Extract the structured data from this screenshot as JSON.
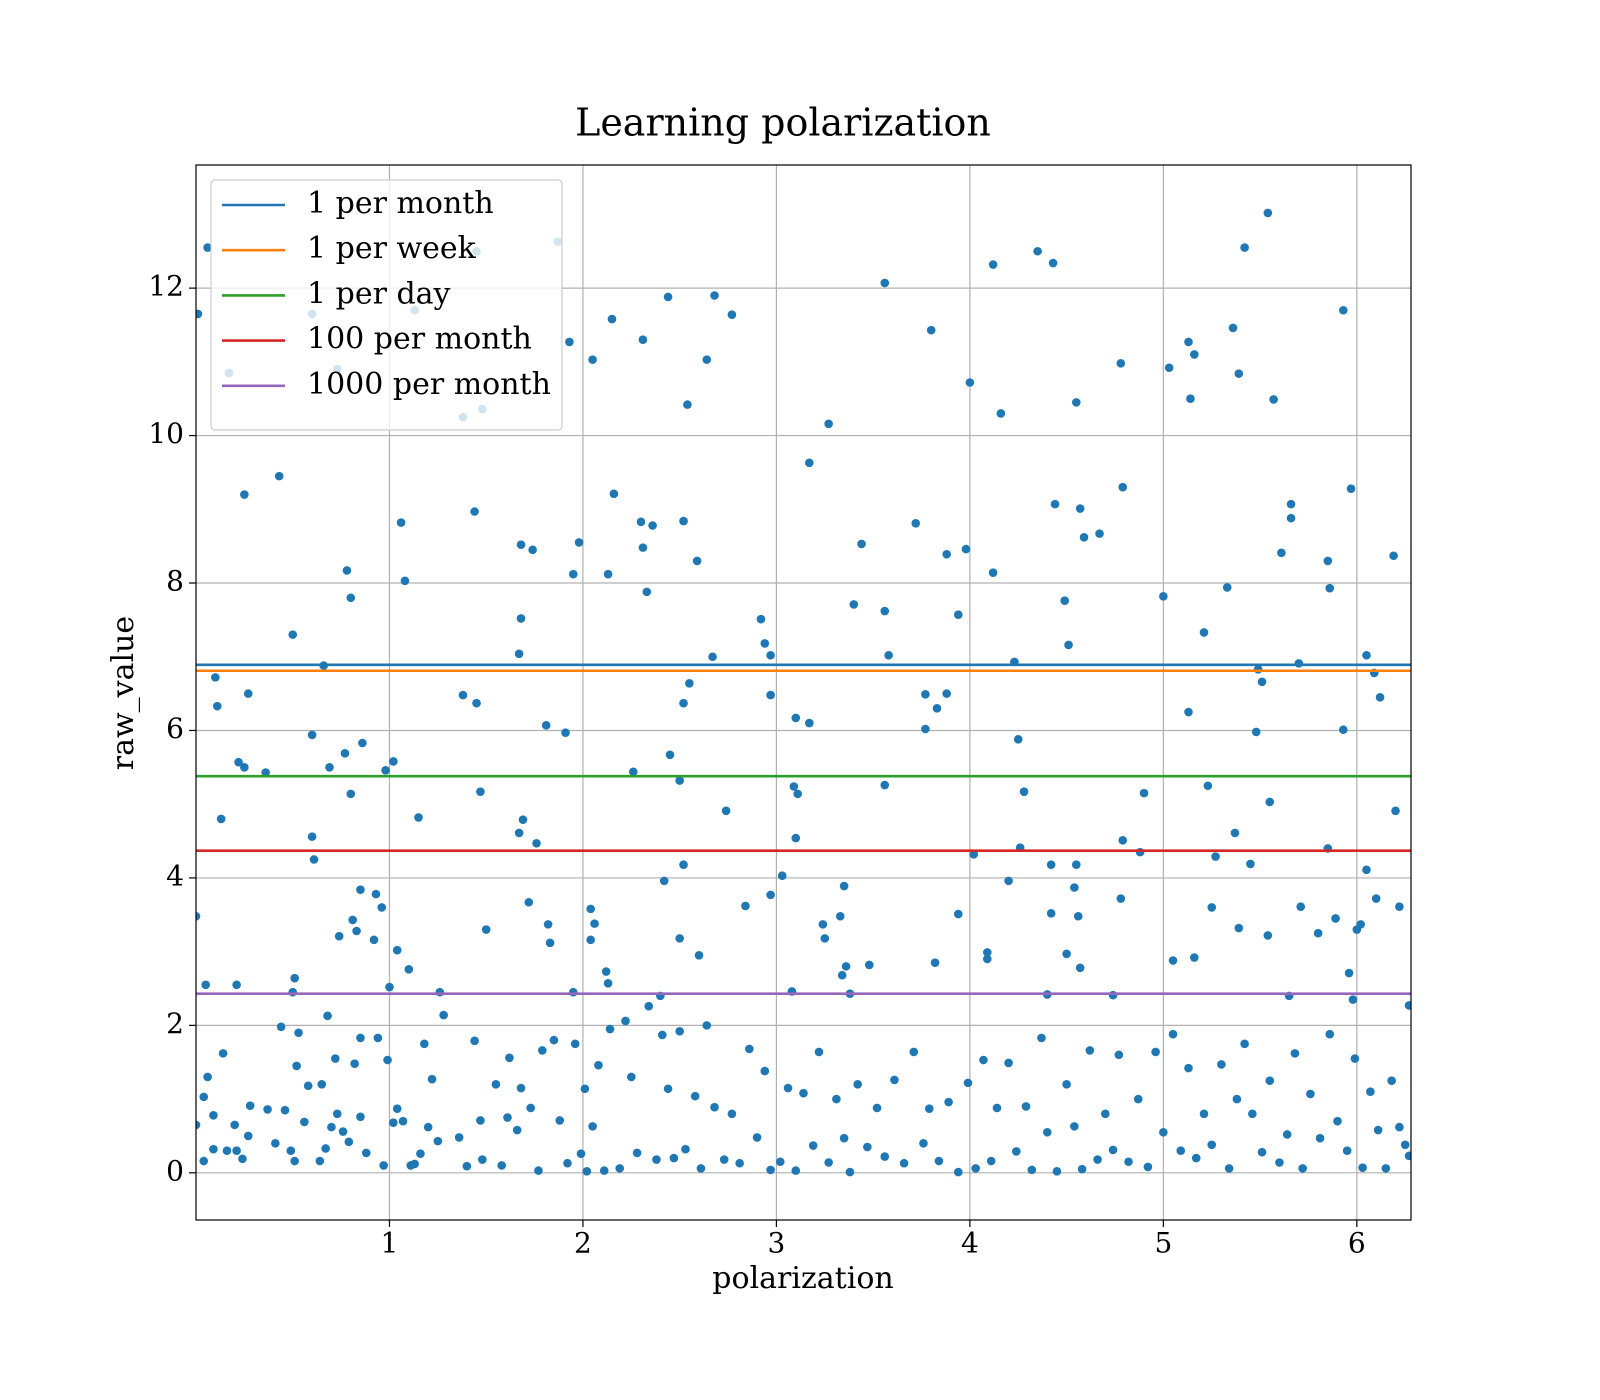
{
  "chart_data": {
    "type": "scatter",
    "title": "Learning polarization",
    "xlabel": "polarization",
    "ylabel": "raw_value",
    "color": "#1f77b4",
    "x": [
      0.01,
      0.06,
      0.17,
      0.25,
      0.43,
      0.6,
      0.73,
      0.5,
      0.78,
      0.8,
      0.66,
      0.1,
      0.11,
      0.27,
      0.13,
      0.22,
      0.25,
      0.36,
      0.6,
      0.6,
      0.61,
      0.69,
      0.77,
      0.8,
      0.86,
      0.98,
      1.06,
      1.08,
      1.13,
      1.02,
      1.15,
      1.38,
      1.44,
      1.45,
      1.38,
      1.47,
      1.48,
      1.45,
      1.68,
      1.74,
      1.68,
      1.67,
      1.69,
      1.67,
      1.76,
      1.81,
      1.87,
      1.91,
      1.93,
      1.95,
      1.98,
      2.05,
      2.15,
      2.16,
      2.13,
      2.26,
      2.31,
      2.3,
      2.31,
      2.36,
      2.33,
      2.44,
      2.52,
      2.59,
      2.54,
      2.64,
      2.68,
      2.77,
      2.67,
      2.55,
      2.52,
      2.45,
      2.5,
      2.52,
      2.42,
      2.74,
      2.92,
      2.94,
      2.97,
      2.97,
      3.1,
      3.17,
      3.09,
      3.11,
      3.1,
      3.17,
      3.27,
      3.44,
      3.4,
      3.56,
      3.56,
      3.58,
      3.56,
      3.72,
      3.8,
      3.77,
      3.77,
      3.83,
      3.88,
      3.88,
      3.94,
      3.98,
      4.0,
      4.12,
      4.12,
      4.16,
      4.23,
      4.25,
      4.28,
      4.26,
      4.02,
      4.35,
      4.43,
      4.44,
      4.49,
      4.51,
      4.55,
      4.57,
      4.59,
      4.67,
      4.78,
      4.79,
      4.79,
      4.88,
      4.9,
      5.0,
      5.03,
      5.13,
      5.14,
      5.16,
      5.21,
      5.13,
      5.23,
      5.27,
      5.33,
      5.36,
      5.39,
      5.42,
      5.37,
      5.45,
      5.48,
      5.49,
      5.51,
      5.54,
      5.57,
      5.55,
      5.61,
      5.66,
      5.66,
      5.7,
      5.85,
      5.86,
      5.93,
      5.93,
      5.97,
      6.05,
      6.09,
      6.12,
      6.19,
      6.2,
      6.05,
      5.85,
      0.0,
      0.85,
      0.83,
      0.81,
      0.74,
      0.92,
      0.93,
      0.96,
      1.04,
      1.1,
      0.51,
      1.5,
      1.72,
      1.82,
      1.83,
      2.04,
      2.06,
      2.04,
      2.12,
      2.13,
      2.5,
      2.6,
      2.84,
      2.97,
      3.03,
      3.24,
      3.25,
      3.33,
      3.35,
      3.34,
      3.36,
      3.48,
      3.82,
      3.94,
      4.09,
      4.09,
      4.2,
      4.42,
      4.42,
      4.54,
      4.56,
      4.57,
      4.5,
      4.55,
      4.78,
      5.05,
      5.16,
      5.25,
      5.39,
      5.54,
      5.71,
      5.8,
      5.89,
      5.96,
      6.0,
      6.02,
      6.1,
      6.22,
      0.05,
      0.21,
      0.5,
      1.0,
      1.26,
      1.95,
      2.4,
      3.08,
      3.38,
      4.4,
      4.74,
      5.65,
      5.98,
      6.27,
      0.0,
      0.04,
      0.06,
      0.04,
      0.09,
      0.09,
      0.14,
      0.16,
      0.2,
      0.21,
      0.24,
      0.27,
      0.28,
      0.37,
      0.41,
      0.44,
      0.46,
      0.49,
      0.51,
      0.52,
      0.53,
      0.56,
      0.58,
      0.64,
      0.65,
      0.67,
      0.68,
      0.7,
      0.72,
      0.73,
      0.76,
      0.79,
      0.82,
      0.85,
      0.85,
      0.88,
      0.94,
      0.97,
      0.99,
      1.02,
      1.04,
      1.07,
      1.11,
      1.13,
      1.16,
      1.18,
      1.2,
      1.22,
      1.25,
      1.28,
      1.36,
      1.4,
      1.44,
      1.47,
      1.48,
      1.55,
      1.58,
      1.61,
      1.62,
      1.66,
      1.68,
      1.73,
      1.77,
      1.79,
      1.85,
      1.88,
      1.92,
      1.96,
      1.99,
      2.01,
      2.02,
      2.05,
      2.08,
      2.11,
      2.14,
      2.19,
      2.22,
      2.25,
      2.28,
      2.34,
      2.38,
      2.41,
      2.44,
      2.47,
      2.5,
      2.53,
      2.58,
      2.61,
      2.64,
      2.68,
      2.73,
      2.77,
      2.81,
      2.86,
      2.9,
      2.94,
      2.97,
      3.02,
      3.06,
      3.1,
      3.14,
      3.19,
      3.22,
      3.27,
      3.31,
      3.35,
      3.38,
      3.42,
      3.47,
      3.52,
      3.56,
      3.61,
      3.66,
      3.71,
      3.76,
      3.79,
      3.84,
      3.89,
      3.94,
      3.99,
      4.03,
      4.07,
      4.11,
      4.14,
      4.2,
      4.24,
      4.29,
      4.32,
      4.37,
      4.4,
      4.45,
      4.5,
      4.54,
      4.58,
      4.62,
      4.66,
      4.7,
      4.74,
      4.77,
      4.82,
      4.87,
      4.92,
      4.96,
      5.0,
      5.05,
      5.09,
      5.13,
      5.17,
      5.21,
      5.25,
      5.3,
      5.34,
      5.38,
      5.42,
      5.46,
      5.51,
      5.55,
      5.6,
      5.64,
      5.68,
      5.72,
      5.76,
      5.81,
      5.86,
      5.9,
      5.95,
      5.99,
      6.03,
      6.07,
      6.11,
      6.15,
      6.18,
      6.22,
      6.25,
      6.27
    ],
    "values": [
      11.65,
      12.55,
      10.85,
      9.2,
      9.45,
      11.65,
      10.9,
      7.3,
      8.17,
      7.8,
      6.88,
      6.72,
      6.33,
      6.5,
      4.8,
      5.57,
      5.5,
      5.43,
      5.94,
      4.56,
      4.25,
      5.5,
      5.69,
      5.14,
      5.83,
      5.46,
      8.82,
      8.03,
      11.7,
      5.58,
      4.82,
      10.25,
      8.97,
      6.37,
      6.48,
      5.17,
      10.36,
      12.5,
      8.52,
      8.45,
      7.52,
      7.04,
      4.79,
      4.61,
      4.47,
      6.07,
      12.63,
      5.97,
      11.27,
      8.12,
      8.55,
      11.03,
      11.58,
      9.21,
      8.12,
      5.44,
      11.3,
      8.83,
      8.48,
      8.78,
      7.88,
      11.88,
      8.84,
      8.3,
      10.42,
      11.03,
      11.9,
      11.64,
      7.0,
      6.64,
      6.37,
      5.67,
      5.32,
      4.18,
      3.96,
      4.91,
      7.51,
      7.18,
      7.02,
      6.48,
      6.17,
      6.1,
      5.24,
      5.14,
      4.54,
      9.63,
      10.16,
      8.53,
      7.71,
      12.07,
      7.62,
      7.02,
      5.26,
      8.81,
      11.43,
      6.49,
      6.02,
      6.3,
      6.5,
      8.39,
      7.57,
      8.46,
      10.72,
      12.32,
      8.14,
      10.3,
      6.93,
      5.88,
      5.17,
      4.41,
      4.32,
      12.5,
      12.34,
      9.07,
      7.76,
      7.16,
      10.45,
      9.01,
      8.62,
      8.67,
      10.98,
      9.3,
      4.51,
      4.35,
      5.15,
      7.82,
      10.92,
      11.27,
      10.5,
      11.1,
      7.33,
      6.25,
      5.25,
      4.29,
      7.94,
      11.46,
      10.84,
      12.55,
      4.61,
      4.19,
      5.98,
      6.83,
      6.66,
      13.02,
      10.49,
      5.03,
      8.41,
      9.07,
      8.88,
      6.91,
      8.3,
      7.93,
      11.7,
      6.01,
      9.28,
      7.02,
      6.78,
      6.45,
      8.37,
      4.91,
      4.11,
      4.4,
      3.48,
      3.84,
      3.28,
      3.43,
      3.21,
      3.16,
      3.78,
      3.6,
      3.02,
      2.76,
      2.64,
      3.3,
      3.67,
      3.37,
      3.12,
      3.58,
      3.38,
      3.16,
      2.73,
      2.57,
      3.18,
      2.95,
      3.62,
      3.77,
      4.03,
      3.37,
      3.18,
      3.48,
      3.89,
      2.68,
      2.8,
      2.82,
      2.85,
      3.51,
      2.99,
      2.9,
      3.96,
      3.52,
      4.18,
      3.87,
      3.48,
      2.78,
      2.97,
      4.18,
      3.72,
      2.88,
      2.92,
      3.6,
      3.32,
      3.22,
      3.61,
      3.25,
      3.45,
      2.71,
      3.3,
      3.37,
      3.72,
      3.61,
      2.55,
      2.55,
      2.45,
      2.52,
      2.45,
      2.45,
      2.4,
      2.46,
      2.43,
      2.42,
      2.41,
      2.4,
      2.35,
      2.27,
      0.65,
      1.03,
      1.3,
      0.16,
      0.32,
      0.78,
      1.62,
      0.3,
      0.65,
      0.3,
      0.19,
      0.5,
      0.91,
      0.86,
      0.4,
      1.98,
      0.85,
      0.3,
      0.16,
      1.45,
      1.9,
      0.69,
      1.18,
      0.16,
      1.2,
      0.33,
      2.13,
      0.62,
      1.55,
      0.8,
      0.56,
      0.42,
      1.48,
      0.76,
      1.83,
      0.27,
      1.83,
      0.1,
      1.53,
      0.68,
      0.87,
      0.7,
      0.1,
      0.12,
      0.26,
      1.75,
      0.62,
      1.27,
      0.43,
      2.14,
      0.48,
      0.09,
      1.79,
      0.71,
      0.18,
      1.2,
      0.1,
      0.75,
      1.56,
      0.58,
      1.15,
      0.88,
      0.03,
      1.66,
      1.8,
      0.71,
      0.13,
      1.75,
      0.26,
      1.14,
      0.02,
      0.63,
      1.46,
      0.03,
      1.95,
      0.06,
      2.06,
      1.3,
      0.27,
      2.26,
      0.18,
      1.87,
      1.14,
      0.2,
      1.92,
      0.32,
      1.04,
      0.06,
      2.0,
      0.89,
      0.18,
      0.8,
      0.13,
      1.68,
      0.48,
      1.38,
      0.04,
      0.15,
      1.15,
      0.03,
      1.08,
      0.37,
      1.64,
      0.14,
      1.0,
      0.47,
      0.01,
      1.2,
      0.35,
      0.88,
      0.22,
      1.26,
      0.13,
      1.64,
      0.4,
      0.87,
      0.16,
      0.96,
      0.01,
      1.22,
      0.06,
      1.53,
      0.16,
      0.88,
      1.49,
      0.29,
      0.9,
      0.04,
      1.83,
      0.55,
      0.02,
      1.2,
      0.63,
      0.05,
      1.66,
      0.18,
      0.8,
      0.31,
      1.6,
      0.15,
      1.0,
      0.08,
      1.64,
      0.55,
      1.88,
      0.3,
      1.42,
      0.2,
      0.8,
      0.38,
      1.47,
      0.06,
      1.0,
      1.75,
      0.8,
      0.28,
      1.25,
      0.14,
      0.52,
      1.62,
      0.06,
      1.07,
      0.47,
      1.88,
      0.7,
      0.3,
      1.55,
      0.07,
      1.1,
      0.58,
      0.06,
      1.25,
      0.62,
      0.38,
      0.23
    ],
    "lines": [
      {
        "name": "1 per month",
        "color": "#1f77b4",
        "value": 6.89
      },
      {
        "name": "1 per week",
        "color": "#ff7f0e",
        "value": 6.81
      },
      {
        "name": "1 per day",
        "color": "#2ca02c",
        "value": 5.38
      },
      {
        "name": "100 per month",
        "color": "#d62728",
        "value": 4.37
      },
      {
        "name": "1000 per month",
        "color": "#9467bd",
        "value": 2.43
      }
    ],
    "xlim": [
      0,
      6.28
    ],
    "ylim": [
      -0.64,
      13.67
    ],
    "xticks": [
      1,
      2,
      3,
      4,
      5,
      6
    ],
    "yticks": [
      0,
      2,
      4,
      6,
      8,
      10,
      12
    ],
    "grid": true,
    "legend": "upper left"
  }
}
